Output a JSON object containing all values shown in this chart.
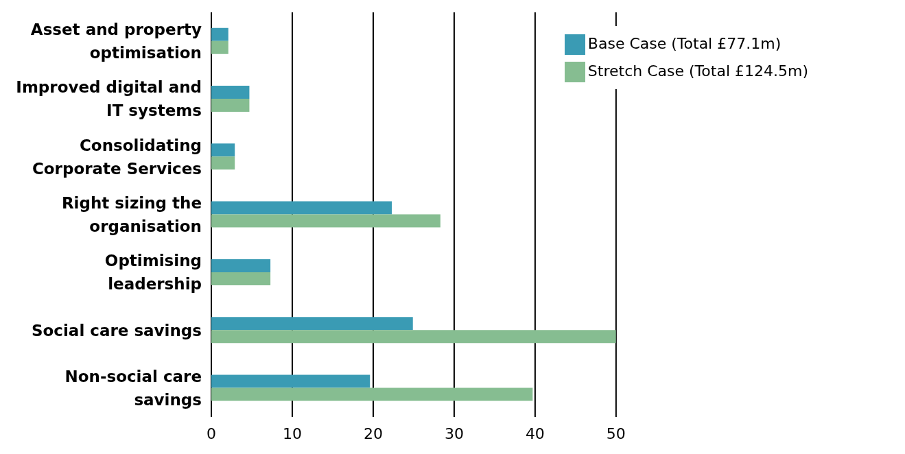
{
  "chart_data": {
    "type": "bar",
    "orientation": "horizontal",
    "categories": [
      "Asset and property optimisation",
      "Improved digital and IT systems",
      "Consolidating Corporate Services",
      "Right sizing the organisation",
      "Optimising leadership",
      "Social care savings",
      "Non-social care savings"
    ],
    "series": [
      {
        "name": "Base Case (Total £77.1m)",
        "color": "#3a9bb4",
        "values": [
          2.1,
          4.7,
          2.9,
          22.3,
          7.3,
          24.9,
          19.6
        ]
      },
      {
        "name": "Stretch Case (Total £124.5m)",
        "color": "#86bd91",
        "values": [
          2.1,
          4.7,
          2.9,
          28.3,
          7.3,
          50,
          39.7
        ]
      }
    ],
    "xlim": [
      0,
      50
    ],
    "xticks": [
      0,
      10,
      20,
      30,
      40,
      50
    ],
    "grid": "x",
    "legend": "top right"
  }
}
